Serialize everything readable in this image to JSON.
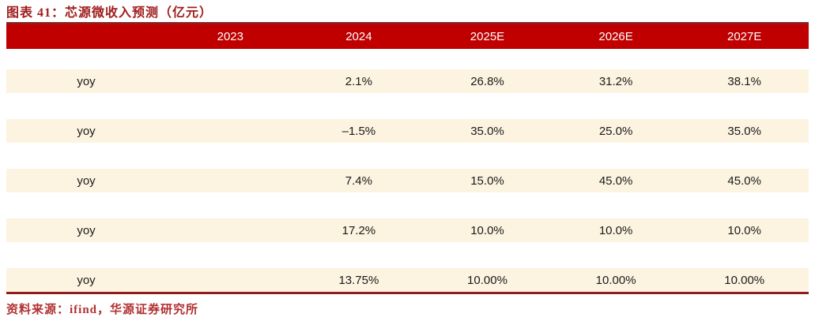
{
  "title": "图表 41：芯源微收入预测（亿元）",
  "source": "资料来源：ifind，华源证券研究所",
  "colors": {
    "header_bg": "#C00000",
    "header_top_edge": "#8F1D1D",
    "row_bg": "#FCF4E0",
    "title_text": "#A01D1D",
    "source_text": "#B03030",
    "header_text": "#FFFFFF"
  },
  "chart_data": {
    "type": "table",
    "title": "图表 41：芯源微收入预测（亿元）",
    "corner_label": "",
    "columns": [
      "2023",
      "2024",
      "2025E",
      "2026E",
      "2027E"
    ],
    "rows": [
      {
        "label": "yoy",
        "values": [
          "",
          "2.1%",
          "26.8%",
          "31.2%",
          "38.1%"
        ]
      },
      {
        "label": "yoy",
        "values": [
          "",
          "–1.5%",
          "35.0%",
          "25.0%",
          "35.0%"
        ]
      },
      {
        "label": "yoy",
        "values": [
          "",
          "7.4%",
          "15.0%",
          "45.0%",
          "45.0%"
        ]
      },
      {
        "label": "yoy",
        "values": [
          "",
          "17.2%",
          "10.0%",
          "10.0%",
          "10.0%"
        ]
      },
      {
        "label": "yoy",
        "values": [
          "",
          "13.75%",
          "10.00%",
          "10.00%",
          "10.00%"
        ]
      }
    ],
    "layout": {
      "grid": false,
      "legend": "none",
      "notes": "2023 column cells are empty in all visible yoy rows"
    },
    "source": "资料来源：ifind，华源证券研究所"
  }
}
